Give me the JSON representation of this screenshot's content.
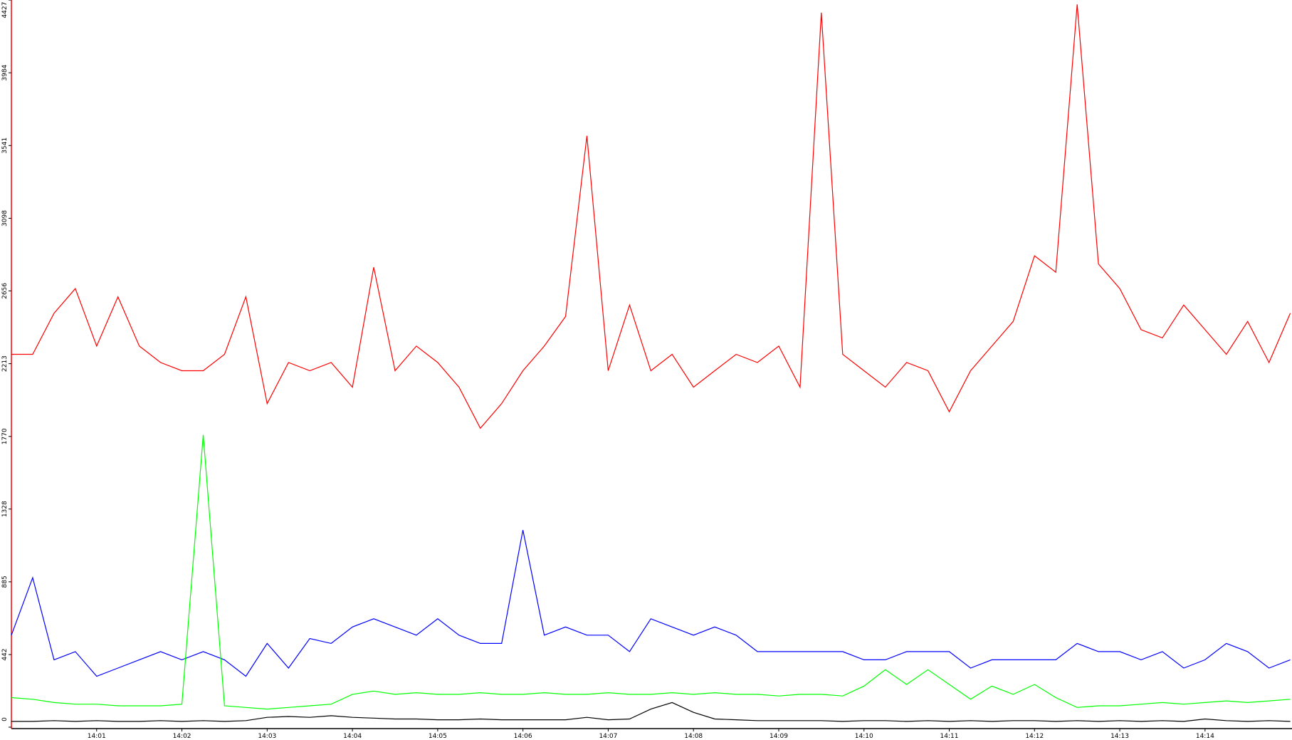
{
  "chart_data": {
    "type": "line",
    "x": [
      0,
      0.25,
      0.5,
      0.75,
      1,
      1.25,
      1.5,
      1.75,
      2,
      2.25,
      2.5,
      2.75,
      3,
      3.25,
      3.5,
      3.75,
      4,
      4.25,
      4.5,
      4.75,
      5,
      5.25,
      5.5,
      5.75,
      6,
      6.25,
      6.5,
      6.75,
      7,
      7.25,
      7.5,
      7.75,
      8,
      8.25,
      8.5,
      8.75,
      9,
      9.25,
      9.5,
      9.75,
      10,
      10.25,
      10.5,
      10.75,
      11,
      11.25,
      11.5,
      11.75,
      12,
      12.25,
      12.5,
      12.75,
      13,
      13.25,
      13.5,
      13.75,
      14,
      14.25,
      14.5,
      14.75,
      15
    ],
    "series": [
      {
        "color": "#ff0000",
        "values": [
          2270,
          2270,
          2520,
          2670,
          2320,
          2620,
          2320,
          2220,
          2170,
          2170,
          2270,
          2620,
          1970,
          2220,
          2170,
          2220,
          2070,
          2800,
          2170,
          2320,
          2220,
          2070,
          1820,
          1970,
          2170,
          2320,
          2500,
          3600,
          2170,
          2570,
          2170,
          2270,
          2070,
          2170,
          2270,
          2220,
          2320,
          2070,
          4350,
          2270,
          2170,
          2070,
          2220,
          2170,
          1920,
          2170,
          2320,
          2470,
          2870,
          2770,
          4400,
          2820,
          2670,
          2420,
          2370,
          2570,
          2420,
          2270,
          2470,
          2220,
          2520
        ]
      },
      {
        "color": "#0000ff",
        "values": [
          560,
          910,
          410,
          460,
          310,
          360,
          410,
          460,
          410,
          460,
          410,
          310,
          510,
          360,
          540,
          510,
          610,
          660,
          610,
          560,
          660,
          560,
          510,
          510,
          1200,
          560,
          610,
          560,
          560,
          460,
          660,
          610,
          560,
          610,
          560,
          460,
          460,
          460,
          460,
          460,
          410,
          410,
          460,
          460,
          460,
          360,
          410,
          410,
          410,
          410,
          510,
          460,
          460,
          410,
          460,
          360,
          410,
          510,
          460,
          360,
          410
        ]
      },
      {
        "color": "#00ff00",
        "values": [
          180,
          170,
          150,
          140,
          140,
          130,
          130,
          130,
          140,
          1780,
          130,
          120,
          110,
          120,
          130,
          140,
          200,
          220,
          200,
          210,
          200,
          200,
          210,
          200,
          200,
          210,
          200,
          200,
          210,
          200,
          200,
          210,
          200,
          210,
          200,
          200,
          190,
          200,
          200,
          190,
          250,
          350,
          260,
          350,
          260,
          170,
          250,
          200,
          260,
          180,
          120,
          130,
          130,
          140,
          150,
          140,
          150,
          160,
          150,
          160,
          170
        ]
      },
      {
        "color": "#000000",
        "values": [
          35,
          35,
          40,
          35,
          40,
          35,
          35,
          40,
          35,
          40,
          35,
          40,
          60,
          65,
          60,
          70,
          60,
          55,
          50,
          50,
          45,
          45,
          50,
          45,
          45,
          45,
          45,
          60,
          45,
          50,
          110,
          150,
          90,
          50,
          45,
          40,
          40,
          40,
          40,
          35,
          40,
          40,
          35,
          40,
          35,
          40,
          35,
          40,
          40,
          35,
          40,
          35,
          40,
          35,
          40,
          35,
          50,
          40,
          35,
          40,
          35
        ]
      }
    ],
    "xlim": [
      0,
      15.02
    ],
    "xticks": [
      {
        "value": 1,
        "label": "14:01"
      },
      {
        "value": 2,
        "label": "14:02"
      },
      {
        "value": 3,
        "label": "14:03"
      },
      {
        "value": 4,
        "label": "14:04"
      },
      {
        "value": 5,
        "label": "14:05"
      },
      {
        "value": 6,
        "label": "14:06"
      },
      {
        "value": 7,
        "label": "14:07"
      },
      {
        "value": 8,
        "label": "14:08"
      },
      {
        "value": 9,
        "label": "14:09"
      },
      {
        "value": 10,
        "label": "14:10"
      },
      {
        "value": 11,
        "label": "14:11"
      },
      {
        "value": 12,
        "label": "14:12"
      },
      {
        "value": 13,
        "label": "14:13"
      },
      {
        "value": 14,
        "label": "14:14"
      }
    ],
    "ylim": [
      0,
      4427
    ],
    "yticks": [
      0,
      442,
      885,
      1328,
      1770,
      2213,
      2656,
      3098,
      3541,
      3984,
      4427
    ]
  }
}
